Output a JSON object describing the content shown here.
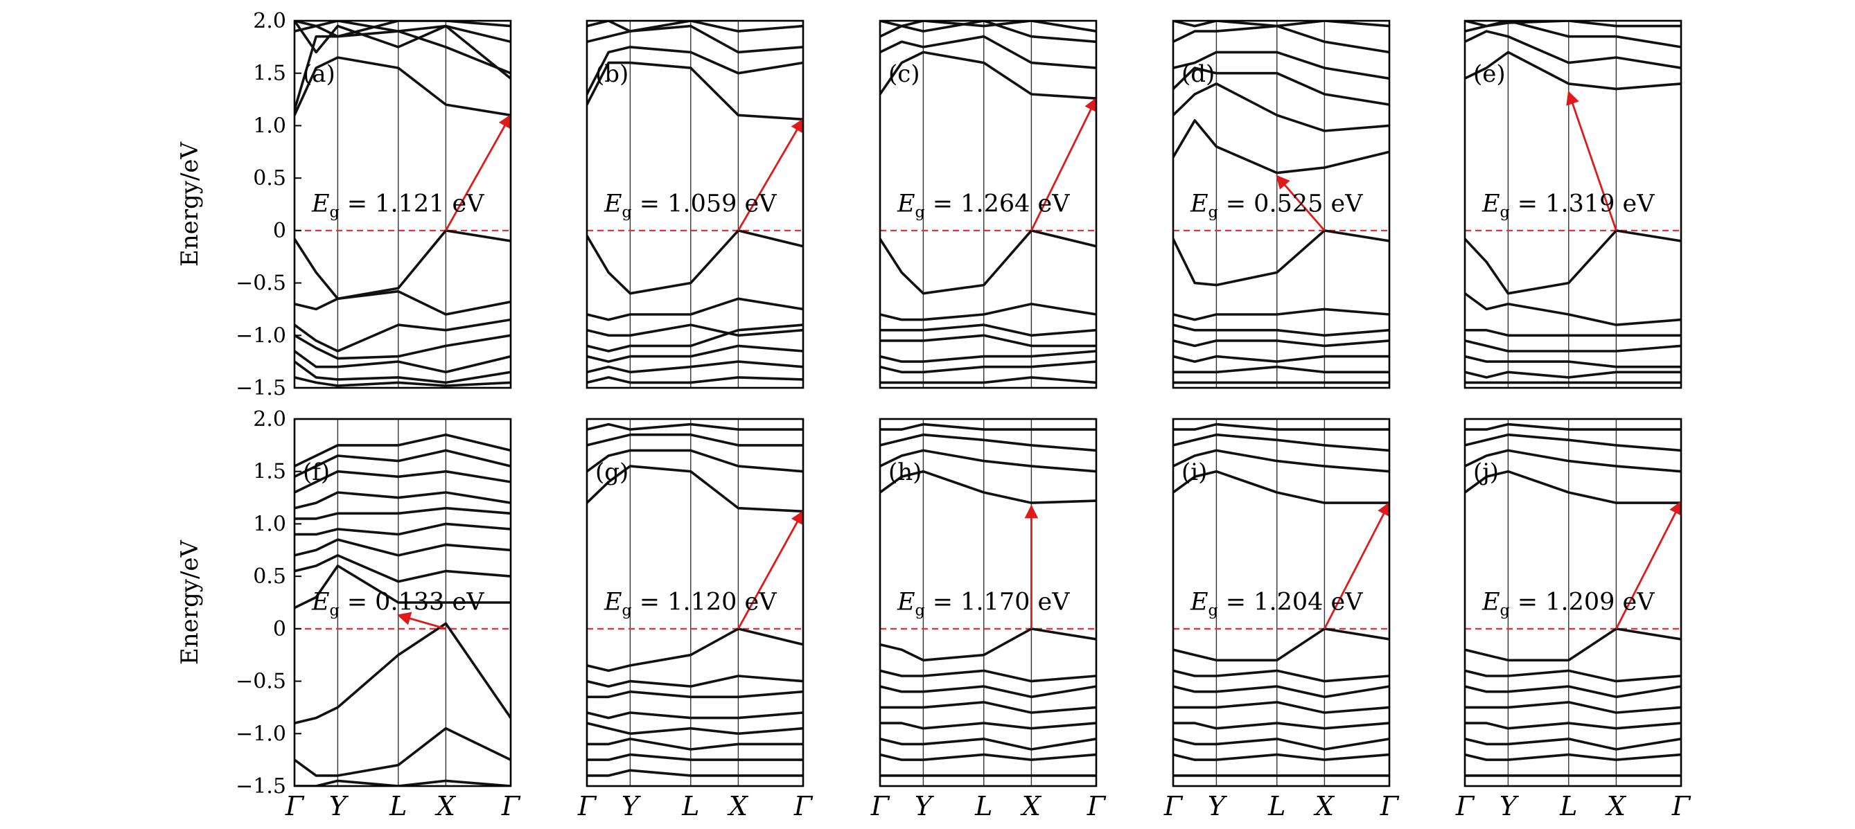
{
  "chart_data": {
    "type": "line",
    "ylabel": "Energy/eV",
    "ylim": [
      -1.5,
      2.0
    ],
    "yticks": [
      {
        "v": 2.0,
        "label": "2.0"
      },
      {
        "v": 1.5,
        "label": "1.5"
      },
      {
        "v": 1.0,
        "label": "1.0"
      },
      {
        "v": 0.5,
        "label": "0.5"
      },
      {
        "v": 0.0,
        "label": "0"
      },
      {
        "v": -0.5,
        "label": "−0.5"
      },
      {
        "v": -1.0,
        "label": "−1.0"
      },
      {
        "v": -1.5,
        "label": "−1.5"
      }
    ],
    "kpoints": [
      "Γ",
      "Y",
      "L",
      "X",
      "Γ"
    ],
    "kpos": [
      0,
      0.2,
      0.48,
      0.7,
      1.0
    ],
    "fermi_level": 0,
    "colors": {
      "bands": "#111111",
      "fermi": "#e8303a",
      "arrow": "#e01a1a"
    },
    "panels": [
      {
        "label": "(a)",
        "eg_value": "1.121",
        "eg_unit": "eV",
        "arrow": {
          "from": [
            0.7,
            0.0
          ],
          "to": [
            1.0,
            1.1
          ]
        },
        "cond": [
          [
            1.1,
            1.55,
            1.65,
            1.55,
            1.2,
            1.1
          ],
          [
            1.15,
            1.85,
            1.85,
            1.9,
            1.75,
            1.5
          ],
          [
            2.0,
            1.7,
            1.95,
            1.75,
            1.95,
            1.45
          ],
          [
            2.0,
            1.95,
            2.0,
            1.9,
            1.95,
            1.8
          ],
          [
            1.9,
            1.95,
            1.85,
            2.0,
            2.0,
            1.95
          ]
        ],
        "val": [
          [
            -0.08,
            -0.4,
            -0.65,
            -0.55,
            0.0,
            -0.1
          ],
          [
            -0.7,
            -0.75,
            -0.65,
            -0.58,
            -0.8,
            -0.68
          ],
          [
            -0.9,
            -1.05,
            -1.15,
            -0.9,
            -0.95,
            -0.85
          ],
          [
            -1.0,
            -1.12,
            -1.22,
            -1.2,
            -1.1,
            -1.0
          ],
          [
            -1.15,
            -1.3,
            -1.3,
            -1.25,
            -1.35,
            -1.2
          ],
          [
            -1.25,
            -1.4,
            -1.42,
            -1.4,
            -1.45,
            -1.35
          ],
          [
            -1.4,
            -1.45,
            -1.48,
            -1.45,
            -1.48,
            -1.45
          ]
        ]
      },
      {
        "label": "(b)",
        "eg_value": "1.059",
        "eg_unit": "eV",
        "arrow": {
          "from": [
            0.7,
            0.0
          ],
          "to": [
            1.0,
            1.06
          ]
        },
        "cond": [
          [
            1.2,
            1.6,
            1.6,
            1.55,
            1.1,
            1.06
          ],
          [
            1.3,
            1.7,
            1.75,
            1.7,
            1.5,
            1.6
          ],
          [
            1.8,
            1.85,
            1.9,
            1.95,
            1.7,
            1.75
          ],
          [
            1.95,
            2.0,
            1.9,
            2.0,
            1.9,
            1.95
          ]
        ],
        "val": [
          [
            -0.05,
            -0.4,
            -0.6,
            -0.5,
            0.0,
            -0.15
          ],
          [
            -0.8,
            -0.85,
            -0.8,
            -0.8,
            -0.65,
            -0.75
          ],
          [
            -0.95,
            -1.0,
            -1.0,
            -0.9,
            -1.0,
            -0.95
          ],
          [
            -1.1,
            -1.15,
            -1.1,
            -1.1,
            -0.95,
            -0.9
          ],
          [
            -1.2,
            -1.25,
            -1.2,
            -1.2,
            -1.1,
            -1.15
          ],
          [
            -1.35,
            -1.3,
            -1.35,
            -1.3,
            -1.25,
            -1.3
          ],
          [
            -1.45,
            -1.4,
            -1.45,
            -1.45,
            -1.4,
            -1.42
          ]
        ]
      },
      {
        "label": "(c)",
        "eg_value": "1.264",
        "eg_unit": "eV",
        "arrow": {
          "from": [
            0.7,
            0.0
          ],
          "to": [
            1.0,
            1.26
          ]
        },
        "cond": [
          [
            1.3,
            1.6,
            1.7,
            1.6,
            1.3,
            1.26
          ],
          [
            1.7,
            1.8,
            1.75,
            1.85,
            1.6,
            1.55
          ],
          [
            1.85,
            1.95,
            1.9,
            2.0,
            1.85,
            1.8
          ],
          [
            2.0,
            1.95,
            2.0,
            1.95,
            2.0,
            1.9
          ]
        ],
        "val": [
          [
            -0.08,
            -0.4,
            -0.6,
            -0.52,
            0.0,
            -0.15
          ],
          [
            -0.8,
            -0.85,
            -0.85,
            -0.8,
            -0.7,
            -0.8
          ],
          [
            -0.95,
            -0.95,
            -0.95,
            -0.9,
            -1.0,
            -0.95
          ],
          [
            -1.05,
            -1.05,
            -1.05,
            -1.0,
            -1.1,
            -1.1
          ],
          [
            -1.2,
            -1.25,
            -1.25,
            -1.2,
            -1.2,
            -1.15
          ],
          [
            -1.3,
            -1.35,
            -1.35,
            -1.3,
            -1.3,
            -1.25
          ],
          [
            -1.45,
            -1.45,
            -1.45,
            -1.45,
            -1.4,
            -1.45
          ]
        ]
      },
      {
        "label": "(d)",
        "eg_value": "0.525",
        "eg_unit": "eV",
        "arrow": {
          "from": [
            0.7,
            0.0
          ],
          "to": [
            0.48,
            0.52
          ]
        },
        "cond": [
          [
            0.7,
            1.05,
            0.8,
            0.55,
            0.6,
            0.75
          ],
          [
            1.1,
            1.3,
            1.4,
            1.1,
            0.95,
            1.0
          ],
          [
            1.35,
            1.55,
            1.5,
            1.5,
            1.3,
            1.2
          ],
          [
            1.55,
            1.6,
            1.7,
            1.7,
            1.55,
            1.45
          ],
          [
            1.8,
            1.9,
            1.9,
            1.95,
            1.8,
            1.7
          ],
          [
            2.0,
            1.95,
            2.0,
            1.95,
            2.0,
            1.95
          ]
        ],
        "val": [
          [
            -0.08,
            -0.5,
            -0.52,
            -0.4,
            0.0,
            -0.1
          ],
          [
            -0.8,
            -0.85,
            -0.8,
            -0.8,
            -0.75,
            -0.8
          ],
          [
            -0.9,
            -0.95,
            -0.95,
            -0.95,
            -1.0,
            -0.95
          ],
          [
            -1.05,
            -1.1,
            -1.05,
            -1.05,
            -1.1,
            -1.05
          ],
          [
            -1.2,
            -1.25,
            -1.2,
            -1.25,
            -1.2,
            -1.2
          ],
          [
            -1.35,
            -1.35,
            -1.35,
            -1.3,
            -1.35,
            -1.35
          ],
          [
            -1.45,
            -1.45,
            -1.45,
            -1.45,
            -1.45,
            -1.45
          ]
        ]
      },
      {
        "label": "(e)",
        "eg_value": "1.319",
        "eg_unit": "eV",
        "arrow": {
          "from": [
            0.7,
            0.0
          ],
          "to": [
            0.48,
            1.32
          ]
        },
        "cond": [
          [
            1.45,
            1.55,
            1.7,
            1.4,
            1.35,
            1.4
          ],
          [
            1.8,
            1.9,
            1.85,
            1.6,
            1.65,
            1.55
          ],
          [
            1.9,
            1.95,
            2.0,
            1.85,
            1.85,
            1.75
          ],
          [
            2.0,
            1.95,
            1.98,
            2.0,
            1.95,
            1.95
          ]
        ],
        "val": [
          [
            -0.08,
            -0.3,
            -0.6,
            -0.5,
            0.0,
            -0.1
          ],
          [
            -0.6,
            -0.75,
            -0.7,
            -0.8,
            -0.9,
            -0.85
          ],
          [
            -0.95,
            -0.95,
            -1.0,
            -1.0,
            -1.0,
            -1.0
          ],
          [
            -1.05,
            -1.1,
            -1.15,
            -1.15,
            -1.15,
            -1.1
          ],
          [
            -1.2,
            -1.25,
            -1.25,
            -1.25,
            -1.3,
            -1.3
          ],
          [
            -1.35,
            -1.4,
            -1.35,
            -1.4,
            -1.35,
            -1.35
          ],
          [
            -1.45,
            -1.45,
            -1.45,
            -1.45,
            -1.45,
            -1.45
          ]
        ]
      },
      {
        "label": "(f)",
        "eg_value": "0.133",
        "eg_unit": "eV",
        "arrow": {
          "from": [
            0.7,
            0.0
          ],
          "to": [
            0.48,
            0.13
          ]
        },
        "cond": [
          [
            0.2,
            0.3,
            0.6,
            0.25,
            0.25,
            0.25
          ],
          [
            0.55,
            0.6,
            0.7,
            0.45,
            0.55,
            0.5
          ],
          [
            0.7,
            0.75,
            0.85,
            0.7,
            0.8,
            0.75
          ],
          [
            0.9,
            0.9,
            0.95,
            0.9,
            1.0,
            0.95
          ],
          [
            1.05,
            1.05,
            1.1,
            1.1,
            1.15,
            1.1
          ],
          [
            1.15,
            1.2,
            1.3,
            1.25,
            1.3,
            1.2
          ],
          [
            1.3,
            1.4,
            1.5,
            1.45,
            1.5,
            1.4
          ],
          [
            1.45,
            1.55,
            1.65,
            1.6,
            1.7,
            1.55
          ],
          [
            1.55,
            1.65,
            1.75,
            1.75,
            1.85,
            1.7
          ]
        ],
        "val": [
          [
            -0.9,
            -0.85,
            -0.75,
            -0.25,
            0.05,
            -0.85
          ],
          [
            -1.25,
            -1.4,
            -1.4,
            -1.3,
            -0.95,
            -1.25
          ],
          [
            -1.5,
            -1.5,
            -1.45,
            -1.5,
            -1.45,
            -1.5
          ]
        ]
      },
      {
        "label": "(g)",
        "eg_value": "1.120",
        "eg_unit": "eV",
        "arrow": {
          "from": [
            0.7,
            0.0
          ],
          "to": [
            1.0,
            1.12
          ]
        },
        "cond": [
          [
            1.2,
            1.4,
            1.55,
            1.5,
            1.15,
            1.12
          ],
          [
            1.5,
            1.65,
            1.7,
            1.7,
            1.55,
            1.5
          ],
          [
            1.75,
            1.8,
            1.85,
            1.85,
            1.75,
            1.75
          ],
          [
            1.9,
            1.95,
            1.9,
            1.95,
            1.9,
            1.9
          ]
        ],
        "val": [
          [
            -0.35,
            -0.4,
            -0.35,
            -0.25,
            0.0,
            -0.15
          ],
          [
            -0.5,
            -0.55,
            -0.5,
            -0.55,
            -0.45,
            -0.5
          ],
          [
            -0.65,
            -0.65,
            -0.6,
            -0.65,
            -0.65,
            -0.6
          ],
          [
            -0.8,
            -0.85,
            -0.8,
            -0.85,
            -0.85,
            -0.8
          ],
          [
            -0.9,
            -0.95,
            -1.0,
            -0.95,
            -1.0,
            -0.95
          ],
          [
            -1.1,
            -1.1,
            -1.05,
            -1.15,
            -1.1,
            -1.1
          ],
          [
            -1.25,
            -1.25,
            -1.2,
            -1.25,
            -1.25,
            -1.25
          ],
          [
            -1.4,
            -1.4,
            -1.35,
            -1.4,
            -1.4,
            -1.4
          ]
        ]
      },
      {
        "label": "(h)",
        "eg_value": "1.170",
        "eg_unit": "eV",
        "arrow": {
          "from": [
            0.7,
            0.0
          ],
          "to": [
            0.7,
            1.17
          ]
        },
        "cond": [
          [
            1.3,
            1.45,
            1.5,
            1.3,
            1.2,
            1.22
          ],
          [
            1.55,
            1.65,
            1.7,
            1.6,
            1.55,
            1.5
          ],
          [
            1.75,
            1.8,
            1.85,
            1.8,
            1.75,
            1.7
          ],
          [
            1.9,
            1.9,
            1.95,
            1.9,
            1.9,
            1.9
          ]
        ],
        "val": [
          [
            -0.15,
            -0.2,
            -0.3,
            -0.25,
            0.0,
            -0.1
          ],
          [
            -0.4,
            -0.45,
            -0.45,
            -0.4,
            -0.5,
            -0.45
          ],
          [
            -0.55,
            -0.6,
            -0.6,
            -0.55,
            -0.65,
            -0.55
          ],
          [
            -0.75,
            -0.75,
            -0.75,
            -0.7,
            -0.8,
            -0.75
          ],
          [
            -0.9,
            -0.9,
            -0.95,
            -0.9,
            -0.95,
            -0.9
          ],
          [
            -1.05,
            -1.1,
            -1.1,
            -1.05,
            -1.15,
            -1.05
          ],
          [
            -1.2,
            -1.25,
            -1.25,
            -1.2,
            -1.25,
            -1.2
          ],
          [
            -1.4,
            -1.4,
            -1.4,
            -1.4,
            -1.4,
            -1.4
          ]
        ]
      },
      {
        "label": "(i)",
        "eg_value": "1.204",
        "eg_unit": "eV",
        "arrow": {
          "from": [
            0.7,
            0.0
          ],
          "to": [
            1.0,
            1.2
          ]
        },
        "cond": [
          [
            1.3,
            1.45,
            1.5,
            1.3,
            1.2,
            1.2
          ],
          [
            1.55,
            1.65,
            1.7,
            1.6,
            1.55,
            1.5
          ],
          [
            1.75,
            1.8,
            1.85,
            1.8,
            1.75,
            1.7
          ],
          [
            1.9,
            1.9,
            1.95,
            1.9,
            1.9,
            1.9
          ]
        ],
        "val": [
          [
            -0.2,
            -0.25,
            -0.3,
            -0.3,
            0.0,
            -0.1
          ],
          [
            -0.4,
            -0.45,
            -0.45,
            -0.4,
            -0.5,
            -0.45
          ],
          [
            -0.55,
            -0.6,
            -0.6,
            -0.55,
            -0.65,
            -0.55
          ],
          [
            -0.75,
            -0.75,
            -0.75,
            -0.7,
            -0.8,
            -0.75
          ],
          [
            -0.9,
            -0.9,
            -0.95,
            -0.9,
            -0.95,
            -0.9
          ],
          [
            -1.05,
            -1.1,
            -1.1,
            -1.05,
            -1.15,
            -1.05
          ],
          [
            -1.2,
            -1.25,
            -1.25,
            -1.2,
            -1.25,
            -1.2
          ],
          [
            -1.4,
            -1.4,
            -1.4,
            -1.4,
            -1.4,
            -1.4
          ]
        ]
      },
      {
        "label": "(j)",
        "eg_value": "1.209",
        "eg_unit": "eV",
        "arrow": {
          "from": [
            0.7,
            0.0
          ],
          "to": [
            1.0,
            1.21
          ]
        },
        "cond": [
          [
            1.3,
            1.45,
            1.5,
            1.3,
            1.2,
            1.2
          ],
          [
            1.55,
            1.65,
            1.7,
            1.6,
            1.55,
            1.5
          ],
          [
            1.75,
            1.8,
            1.85,
            1.8,
            1.75,
            1.7
          ],
          [
            1.9,
            1.9,
            1.95,
            1.9,
            1.9,
            1.9
          ]
        ],
        "val": [
          [
            -0.2,
            -0.25,
            -0.3,
            -0.3,
            0.0,
            -0.1
          ],
          [
            -0.4,
            -0.45,
            -0.45,
            -0.4,
            -0.5,
            -0.45
          ],
          [
            -0.55,
            -0.6,
            -0.6,
            -0.55,
            -0.65,
            -0.55
          ],
          [
            -0.75,
            -0.75,
            -0.75,
            -0.7,
            -0.8,
            -0.75
          ],
          [
            -0.9,
            -0.9,
            -0.95,
            -0.9,
            -0.95,
            -0.9
          ],
          [
            -1.05,
            -1.1,
            -1.1,
            -1.05,
            -1.15,
            -1.05
          ],
          [
            -1.2,
            -1.25,
            -1.25,
            -1.2,
            -1.25,
            -1.2
          ],
          [
            -1.4,
            -1.4,
            -1.4,
            -1.4,
            -1.4,
            -1.4
          ]
        ]
      }
    ]
  }
}
